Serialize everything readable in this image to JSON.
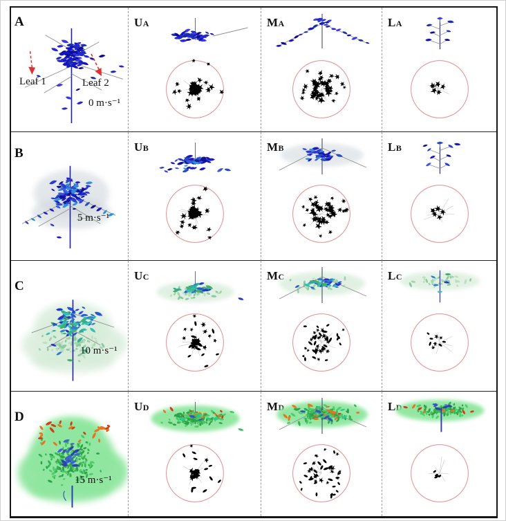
{
  "figure": {
    "rows": [
      {
        "label": "A",
        "wind_speed": "0 m·s⁻¹",
        "annotations": [
          {
            "label": "Leaf 1"
          },
          {
            "label": "Leaf 2"
          }
        ],
        "panels": [
          {
            "main": "U",
            "sub": "A"
          },
          {
            "main": "M",
            "sub": "A"
          },
          {
            "main": "L",
            "sub": "A"
          }
        ],
        "palette": [
          "#1414c0",
          "#2626d8",
          "#0c0c92",
          "#3a3ae6",
          "#1d2fb0"
        ],
        "haze": ""
      },
      {
        "label": "B",
        "wind_speed": "5 m·s⁻¹",
        "panels": [
          {
            "main": "U",
            "sub": "B"
          },
          {
            "main": "M",
            "sub": "B"
          },
          {
            "main": "L",
            "sub": "B"
          }
        ],
        "palette": [
          "#1a1ac0",
          "#2a3ad6",
          "#0e128e",
          "#2e8fd8",
          "#3b55e0",
          "#274dc2"
        ],
        "haze": "#cdd5da"
      },
      {
        "label": "C",
        "wind_speed": "10 m·s⁻¹",
        "panels": [
          {
            "main": "U",
            "sub": "C"
          },
          {
            "main": "M",
            "sub": "C"
          },
          {
            "main": "L",
            "sub": "C"
          }
        ],
        "palette": [
          "#2436ca",
          "#2e7fd2",
          "#2fae9a",
          "#43b06a",
          "#2a52da",
          "#35c0b0"
        ],
        "haze": "#d7ecd9",
        "haze_speckles": [
          "#9fd3a8",
          "#b9e0bf",
          "#8cc9a0"
        ]
      },
      {
        "label": "D",
        "wind_speed": "15 m·s⁻¹",
        "panels": [
          {
            "main": "U",
            "sub": "D"
          },
          {
            "main": "M",
            "sub": "D"
          },
          {
            "main": "L",
            "sub": "D"
          }
        ],
        "palette": [
          "#3bbf5e",
          "#2fc98a",
          "#3552c2",
          "#e8741f",
          "#2fa148",
          "#4ecb6b"
        ],
        "haze": "#8fe69f",
        "haze_speckles": [
          "#37b351",
          "#4ecb6b",
          "#2fa148"
        ],
        "accents": [
          "#e8741f",
          "#d23c17"
        ]
      }
    ],
    "colors": {
      "circle_stroke": "#e39090",
      "silhouette": "#000000",
      "branch": "#8f8f8f",
      "stem": "#20209a",
      "arrow": "#e03030",
      "border": "#151515",
      "divider": "#9a9a9a"
    }
  }
}
